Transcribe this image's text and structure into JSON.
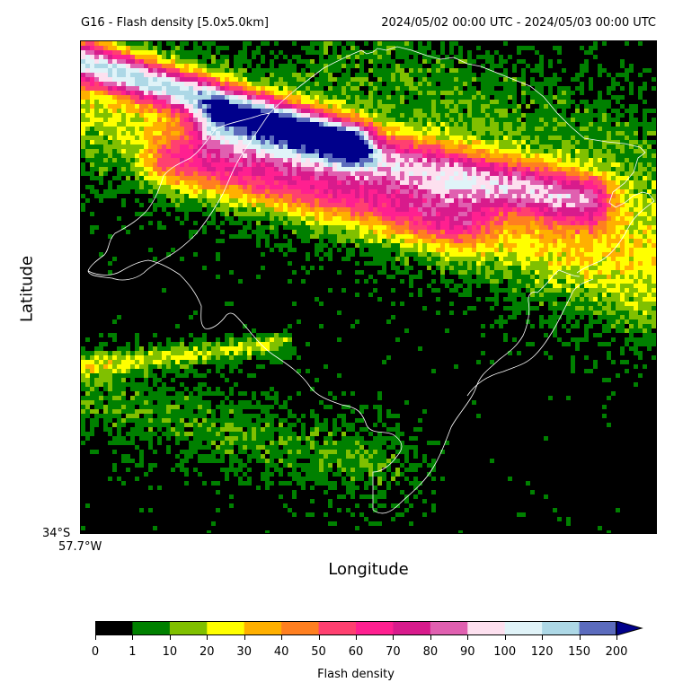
{
  "header": {
    "title": "G16 - Flash density [5.0x5.0km]",
    "period": "2024/05/02 00:00 UTC - 2024/05/03 00:00 UTC"
  },
  "axes": {
    "xlabel": "Longitude",
    "ylabel": "Latitude",
    "lat_tick": "34°S",
    "lon_tick": "57.7°W"
  },
  "colorbar": {
    "title": "Flash density",
    "ticks": [
      "0",
      "1",
      "10",
      "20",
      "30",
      "40",
      "50",
      "60",
      "70",
      "80",
      "90",
      "100",
      "120",
      "150",
      "200"
    ],
    "colors": [
      "#000000",
      "#008000",
      "#80c000",
      "#ffff00",
      "#ffb000",
      "#ff7f20",
      "#ff4070",
      "#ff2090",
      "#d81b8c",
      "#e060b0",
      "#fde0ef",
      "#e0f3f8",
      "#add8e6",
      "#5b6bbd"
    ],
    "extend_color": "#00008b"
  },
  "map": {
    "background": "#000000",
    "coast_color": "#ffffff"
  }
}
